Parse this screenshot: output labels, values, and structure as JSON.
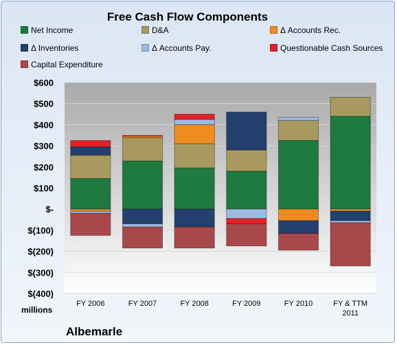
{
  "chart_data": {
    "type": "bar",
    "stacked": true,
    "title": "Free Cash Flow Components",
    "units_label": "millions",
    "company": "Albemarle",
    "categories": [
      "FY 2006",
      "FY 2007",
      "FY 2008",
      "FY 2009",
      "FY 2010",
      "FY & TTM 2011"
    ],
    "ylim": [
      -400,
      600
    ],
    "yticks": [
      600,
      500,
      400,
      300,
      200,
      100,
      0,
      -100,
      -200,
      -300,
      -400
    ],
    "ytick_labels": [
      "$600",
      "$500",
      "$400",
      "$300",
      "$200",
      "$100",
      "$-",
      "$(100)",
      "$(200)",
      "$(300)",
      "$(400)"
    ],
    "grid": true,
    "legend_position": "top",
    "series": [
      {
        "name": "Net Income",
        "color": "#1e7a3f",
        "values": [
          145,
          228,
          195,
          180,
          325,
          440
        ]
      },
      {
        "name": "D&A",
        "color": "#a89a5e",
        "values": [
          110,
          110,
          115,
          100,
          95,
          90
        ]
      },
      {
        "name": "Δ Accounts Rec.",
        "color": "#f08c1e",
        "values": [
          -10,
          8,
          90,
          0,
          -55,
          -10
        ]
      },
      {
        "name": "Δ Inventories",
        "color": "#23406e",
        "values": [
          40,
          -70,
          -85,
          180,
          -60,
          -45
        ]
      },
      {
        "name": "Δ Accounts Pay.",
        "color": "#9dbbe0",
        "values": [
          -10,
          -15,
          25,
          -45,
          15,
          -10
        ]
      },
      {
        "name": "Questionable Cash Sources",
        "color": "#e42026",
        "values": [
          30,
          3,
          25,
          -25,
          0,
          0
        ]
      },
      {
        "name": "Capital Expenditure",
        "color": "#a9484b",
        "values": [
          -105,
          -100,
          -100,
          -105,
          -80,
          -205
        ]
      }
    ]
  }
}
